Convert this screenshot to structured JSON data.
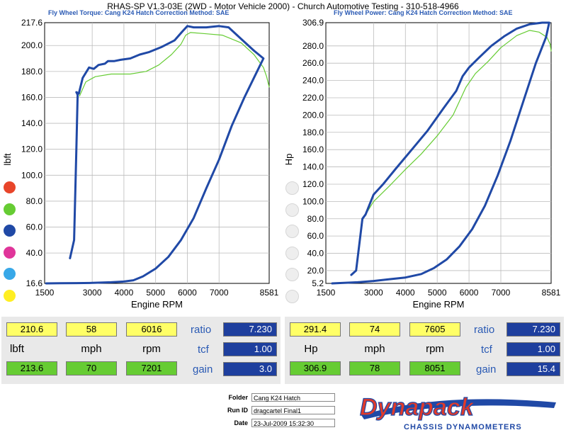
{
  "header": {
    "title": "RHAS-SP V1.3-03E  (2WD - Motor Vehicle 2000) - Church Automotive Testing - 310-518-4966",
    "left_subtitle": "Fly Wheel Torque: Cang K24 Hatch     Correction Method: SAE",
    "right_subtitle": "Fly Wheel Power: Cang K24 Hatch     Correction Method: SAE"
  },
  "colors": {
    "primary_run": "#2049a6",
    "secondary_run": "#66cc33",
    "accent": "#2a5ab4",
    "yellow_cell": "#ffff66",
    "green_cell": "#66cc33"
  },
  "swatches": [
    "#e8452a",
    "#66cc33",
    "#2049a6",
    "#e0359a",
    "#38a8e8",
    "#ffee22"
  ],
  "chart_data": [
    {
      "type": "line",
      "xlabel": "Engine RPM",
      "ylabel": "lbft",
      "xlim": [
        1500,
        8581
      ],
      "ylim": [
        16.6,
        217.6
      ],
      "x_ticks": [
        "1500",
        "3000",
        "4000",
        "5000",
        "6000",
        "7000",
        "8581"
      ],
      "y_ticks": [
        "16.6",
        "40.0",
        "60.0",
        "80.0",
        "100.0",
        "120.0",
        "140.0",
        "160.0",
        "180.0",
        "200.0",
        "217.6"
      ],
      "grid": true,
      "series": [
        {
          "color": "#2049a6",
          "points": [
            [
              2300,
              36
            ],
            [
              2430,
              50
            ],
            [
              2500,
              120
            ],
            [
              2540,
              162
            ],
            [
              2500,
              164
            ],
            [
              2580,
              163
            ],
            [
              2700,
              175
            ],
            [
              2900,
              183
            ],
            [
              3050,
              182
            ],
            [
              3200,
              185
            ],
            [
              3400,
              186
            ],
            [
              3500,
              188
            ],
            [
              3700,
              188
            ],
            [
              3900,
              189
            ],
            [
              4200,
              190
            ],
            [
              4500,
              193
            ],
            [
              4800,
              195
            ],
            [
              5200,
              199
            ],
            [
              5600,
              204
            ],
            [
              5850,
              211
            ],
            [
              6000,
              215
            ],
            [
              6200,
              214
            ],
            [
              6600,
              214
            ],
            [
              7000,
              215
            ],
            [
              7300,
              214
            ],
            [
              7700,
              205
            ],
            [
              8100,
              196
            ],
            [
              8400,
              190
            ],
            [
              8200,
              180
            ],
            [
              7800,
              160
            ],
            [
              7400,
              138
            ],
            [
              7000,
              112
            ],
            [
              6600,
              90
            ],
            [
              6200,
              67
            ],
            [
              5800,
              50
            ],
            [
              5400,
              37
            ],
            [
              5000,
              28
            ],
            [
              4600,
              22
            ],
            [
              4300,
              19
            ],
            [
              4000,
              18
            ],
            [
              3600,
              17.5
            ],
            [
              3000,
              17
            ],
            [
              2500,
              16.8
            ],
            [
              2000,
              16.7
            ],
            [
              1550,
              16.6
            ]
          ]
        },
        {
          "color": "#66cc33",
          "points": [
            [
              2600,
              161
            ],
            [
              2800,
              172
            ],
            [
              3100,
              176
            ],
            [
              3600,
              178
            ],
            [
              4200,
              178
            ],
            [
              4700,
              180
            ],
            [
              5100,
              185
            ],
            [
              5500,
              193
            ],
            [
              5800,
              201
            ],
            [
              5950,
              208
            ],
            [
              6100,
              210
            ],
            [
              6600,
              209
            ],
            [
              7100,
              208
            ],
            [
              7700,
              202
            ],
            [
              8100,
              193
            ],
            [
              8400,
              183
            ],
            [
              8500,
              176
            ],
            [
              8581,
              168
            ]
          ]
        }
      ]
    },
    {
      "type": "line",
      "xlabel": "Engine RPM",
      "ylabel": "Hp",
      "xlim": [
        1500,
        8581
      ],
      "ylim": [
        5.2,
        306.9
      ],
      "x_ticks": [
        "1500",
        "3000",
        "4000",
        "5000",
        "6000",
        "7000",
        "8581"
      ],
      "y_ticks": [
        "5.2",
        "20.0",
        "40.0",
        "60.0",
        "80.0",
        "100.0",
        "120.0",
        "140.0",
        "160.0",
        "180.0",
        "200.0",
        "220.0",
        "240.0",
        "260.0",
        "280.0",
        "306.9"
      ],
      "grid": true,
      "series": [
        {
          "color": "#2049a6",
          "points": [
            [
              2300,
              15
            ],
            [
              2450,
              20
            ],
            [
              2600,
              65
            ],
            [
              2650,
              80
            ],
            [
              2750,
              85
            ],
            [
              3000,
              108
            ],
            [
              3300,
              120
            ],
            [
              3700,
              138
            ],
            [
              4200,
              160
            ],
            [
              4700,
              182
            ],
            [
              5200,
              208
            ],
            [
              5600,
              228
            ],
            [
              5800,
              245
            ],
            [
              6000,
              255
            ],
            [
              6300,
              266
            ],
            [
              6700,
              280
            ],
            [
              7100,
              291
            ],
            [
              7500,
              300
            ],
            [
              7900,
              305
            ],
            [
              8300,
              306.9
            ],
            [
              8520,
              306.9
            ],
            [
              8420,
              290
            ],
            [
              8100,
              260
            ],
            [
              7700,
              215
            ],
            [
              7300,
              170
            ],
            [
              6900,
              130
            ],
            [
              6500,
              95
            ],
            [
              6100,
              68
            ],
            [
              5700,
              48
            ],
            [
              5300,
              33
            ],
            [
              4900,
              23
            ],
            [
              4500,
              16
            ],
            [
              4000,
              12
            ],
            [
              3500,
              10
            ],
            [
              3000,
              8
            ],
            [
              2500,
              6.5
            ],
            [
              1700,
              5.2
            ]
          ]
        },
        {
          "color": "#66cc33",
          "points": [
            [
              2650,
              79
            ],
            [
              3000,
              100
            ],
            [
              3500,
              118
            ],
            [
              4000,
              137
            ],
            [
              4500,
              155
            ],
            [
              5000,
              176
            ],
            [
              5500,
              200
            ],
            [
              5900,
              232
            ],
            [
              6200,
              248
            ],
            [
              6600,
              262
            ],
            [
              7000,
              278
            ],
            [
              7500,
              292
            ],
            [
              7900,
              298
            ],
            [
              8200,
              296
            ],
            [
              8450,
              290
            ],
            [
              8550,
              282
            ],
            [
              8581,
              274
            ]
          ]
        }
      ]
    }
  ],
  "panels": [
    {
      "top": [
        "210.6",
        "58",
        "6016"
      ],
      "units": [
        "lbft",
        "mph",
        "rpm"
      ],
      "bottom": [
        "213.6",
        "70",
        "7201"
      ],
      "side": [
        {
          "label": "ratio",
          "value": "7.230"
        },
        {
          "label": "tcf",
          "value": "1.00"
        },
        {
          "label": "gain",
          "value": "3.0"
        }
      ]
    },
    {
      "top": [
        "291.4",
        "74",
        "7605"
      ],
      "units": [
        "Hp",
        "mph",
        "rpm"
      ],
      "bottom": [
        "306.9",
        "78",
        "8051"
      ],
      "side": [
        {
          "label": "ratio",
          "value": "7.230"
        },
        {
          "label": "tcf",
          "value": "1.00"
        },
        {
          "label": "gain",
          "value": "15.4"
        }
      ]
    }
  ],
  "footer": {
    "folder_label": "Folder",
    "folder": "Cang K24 Hatch",
    "runid_label": "Run ID",
    "runid": "dragcartel Final1",
    "date_label": "Date",
    "date": "23-Jul-2009   15:32:30"
  },
  "logo": {
    "brand": "Dynapack",
    "tagline": "CHASSIS DYNAMOMETERS"
  }
}
